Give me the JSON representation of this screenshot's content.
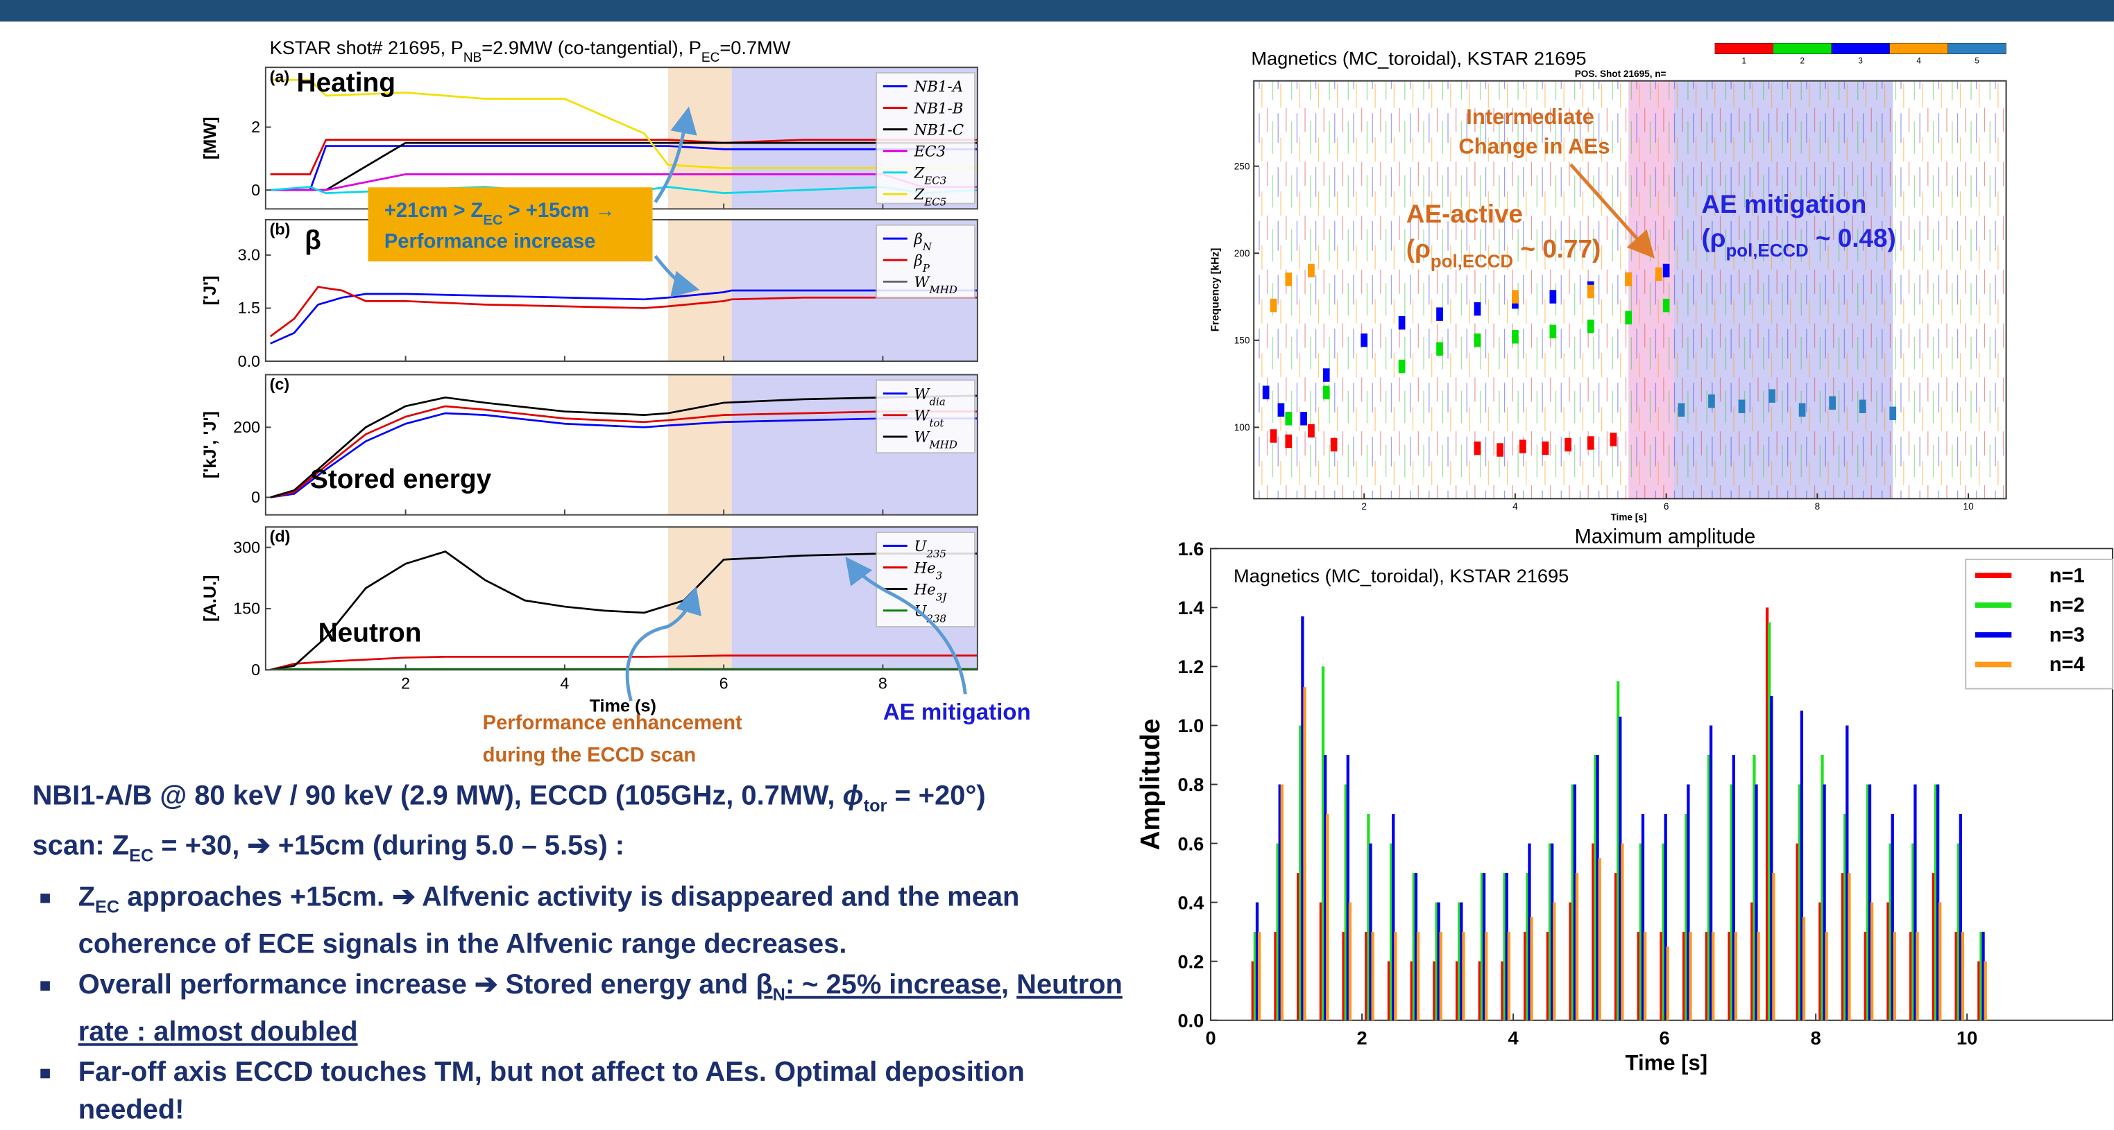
{
  "left_figure": {
    "title": [
      "KSTAR shot# 21695, P",
      "NB",
      "=2.9MW (co-tangential), P",
      "EC",
      "=0.7MW"
    ],
    "xlim": [
      0.24,
      9.19
    ],
    "xticks": [
      2,
      4,
      6,
      8
    ],
    "x_label": "Time (s)",
    "shaded": [
      {
        "from": 5.3,
        "to": 6.1,
        "color": "#f7dcc0"
      },
      {
        "from": 6.1,
        "to": 9.19,
        "color": "#c9c9f4"
      }
    ],
    "panels": [
      {
        "tag": "(a)",
        "label": "Heating",
        "y_label": "[MW]",
        "ylim": [
          -0.6,
          3.9
        ],
        "yticks": [
          0,
          2
        ],
        "x": [
          0.3,
          0.8,
          1.0,
          2.0,
          3.0,
          4.0,
          5.0,
          5.3,
          6.0,
          7.0,
          8.0,
          8.5,
          9.2
        ],
        "series": [
          {
            "name": "NB1-A",
            "color": "#0000ff",
            "values": [
              0,
              0,
              1.4,
              1.4,
              1.4,
              1.4,
              1.4,
              1.4,
              1.3,
              1.3,
              1.3,
              1.3,
              1.3
            ]
          },
          {
            "name": "NB1-B",
            "color": "#e00000",
            "values": [
              0.5,
              0.5,
              1.6,
              1.6,
              1.6,
              1.6,
              1.6,
              1.6,
              1.5,
              1.6,
              1.6,
              1.6,
              1.6
            ]
          },
          {
            "name": "NB1-C",
            "color": "#000000",
            "values": [
              0,
              0,
              0,
              1.5,
              1.5,
              1.5,
              1.5,
              1.5,
              1.5,
              1.5,
              1.5,
              1.5,
              1.5
            ]
          },
          {
            "name": "EC3",
            "color": "#e000e0",
            "values": [
              0,
              0,
              0,
              0.5,
              0.5,
              0.5,
              0.5,
              0.5,
              0.5,
              0.5,
              0.5,
              0.1,
              0.1
            ]
          },
          {
            "name": "Z",
            "sub": "EC3",
            "color": "#00d8e8",
            "values": [
              0,
              0.1,
              -0.1,
              0,
              0.1,
              -0.1,
              0,
              0.1,
              -0.1,
              0,
              0.1,
              -0.1,
              0
            ]
          },
          {
            "name": "Z",
            "sub": "EC5",
            "color": "#f2e000",
            "values": [
              3.5,
              3.5,
              3.0,
              3.1,
              2.9,
              2.9,
              1.8,
              0.8,
              0.7,
              0.7,
              0.7,
              0.7,
              0.7
            ]
          }
        ]
      },
      {
        "tag": "(b)",
        "label": "β",
        "y_label": "['J']",
        "ylim": [
          0,
          4.0
        ],
        "yticks": [
          {
            "value": 0,
            "label": "0.0"
          },
          1.5,
          {
            "value": 3,
            "label": "3.0"
          }
        ],
        "x": [
          0.3,
          0.6,
          0.9,
          1.2,
          1.5,
          2,
          3,
          4,
          5,
          5.3,
          6,
          6.1,
          7,
          8,
          9.2
        ],
        "series": [
          {
            "name": "β",
            "sub": "N",
            "color": "#0000ff",
            "values": [
              0.5,
              0.8,
              1.6,
              1.8,
              1.9,
              1.9,
              1.85,
              1.8,
              1.75,
              1.8,
              1.95,
              2.0,
              2.0,
              2.0,
              2.0
            ]
          },
          {
            "name": "β",
            "sub": "P",
            "color": "#e00000",
            "values": [
              0.7,
              1.2,
              2.1,
              2.0,
              1.7,
              1.7,
              1.6,
              1.55,
              1.5,
              1.55,
              1.7,
              1.75,
              1.8,
              1.8,
              1.8
            ]
          }
        ],
        "legend_only": [
          {
            "name": "W",
            "sub": "MHD",
            "color": "#666666"
          }
        ]
      },
      {
        "tag": "(c)",
        "label": "Stored energy",
        "y_label": "['kJ', 'J']",
        "ylim": [
          -50,
          350
        ],
        "yticks": [
          0,
          200
        ],
        "x": [
          0.3,
          0.6,
          1,
          1.5,
          2,
          2.5,
          3,
          4,
          5,
          5.3,
          6,
          7,
          8,
          9.2
        ],
        "series": [
          {
            "name": "W",
            "sub": "dia",
            "color": "#0000ff",
            "values": [
              0,
              10,
              80,
              160,
              210,
              240,
              235,
              210,
              200,
              205,
              215,
              220,
              225,
              225
            ]
          },
          {
            "name": "W",
            "sub": "tot",
            "color": "#e00000",
            "values": [
              0,
              15,
              90,
              180,
              230,
              260,
              250,
              225,
              215,
              220,
              235,
              240,
              245,
              245
            ]
          },
          {
            "name": "W",
            "sub": "MHD",
            "color": "#000000",
            "values": [
              0,
              20,
              100,
              200,
              260,
              285,
              270,
              245,
              235,
              240,
              270,
              280,
              285,
              290
            ]
          }
        ]
      },
      {
        "tag": "(d)",
        "label": "Neutron",
        "y_label": "[A.U.]",
        "ylim": [
          0,
          350
        ],
        "yticks": [
          0,
          150,
          300
        ],
        "x": [
          0.3,
          0.6,
          1,
          1.5,
          2,
          2.5,
          3,
          3.5,
          4,
          4.5,
          5,
          5.5,
          6,
          6.5,
          7,
          8,
          9.2
        ],
        "series": [
          {
            "name": "U",
            "sub": "235",
            "color": "#0000ff",
            "values": [
              0,
              1,
              1,
              1,
              1,
              1,
              1,
              1,
              1,
              1,
              1,
              1,
              1,
              1,
              1,
              1,
              1
            ]
          },
          {
            "name": "He",
            "sub": "3",
            "color": "#e00000",
            "values": [
              0,
              15,
              20,
              25,
              30,
              32,
              32,
              32,
              32,
              32,
              32,
              33,
              35,
              35,
              35,
              35,
              35
            ]
          },
          {
            "name": "He",
            "sub": "3J",
            "color": "#000000",
            "values": [
              0,
              10,
              80,
              200,
              260,
              290,
              220,
              170,
              155,
              145,
              140,
              170,
              270,
              275,
              280,
              285,
              285
            ]
          },
          {
            "name": "U",
            "sub": "238",
            "color": "#008000",
            "values": [
              0,
              2,
              2,
              2,
              2,
              2,
              2,
              2,
              2,
              2,
              2,
              2,
              2,
              2,
              2,
              2,
              2
            ]
          }
        ]
      }
    ],
    "callout": [
      "+21cm > Z",
      "EC",
      " > +15cm →",
      "Performance increase"
    ],
    "annotation_left": [
      "Performance enhancement",
      "during the ECCD scan"
    ],
    "annotation_right": "AE mitigation"
  },
  "spectrogram": {
    "title": "Magnetics (MC_toroidal), KSTAR 21695",
    "inner_title": "POS. Shot 21695, n=",
    "colorbar": {
      "labels": [
        1,
        2,
        3,
        4,
        5
      ],
      "colors": [
        "#ff0000",
        "#00e000",
        "#0000ff",
        "#ff9900",
        "#2a7fc0"
      ]
    },
    "x_label": "Time [s]",
    "y_label": "Frequency [kHz]",
    "xlim": [
      0.54,
      10.5
    ],
    "xticks": [
      2,
      4,
      6,
      8,
      10
    ],
    "ylim": [
      59,
      299
    ],
    "yticks": [
      100,
      150,
      200,
      250
    ],
    "shaded": [
      {
        "from": 5.5,
        "to": 6.1,
        "color": "#f6c8e8"
      },
      {
        "from": 6.1,
        "to": 9.0,
        "color": "#cdcdf6"
      }
    ],
    "tracks": [
      {
        "color": "#ff0000",
        "x": [
          0.8,
          1.0,
          1.3,
          1.6,
          3.5,
          3.8,
          4.1,
          4.4,
          4.7,
          5.0,
          5.3
        ],
        "values": [
          95,
          92,
          98,
          90,
          88,
          87,
          89,
          88,
          90,
          91,
          93
        ]
      },
      {
        "color": "#00e000",
        "x": [
          1.0,
          1.5,
          2.5,
          3.0,
          3.5,
          4.0,
          4.5,
          5.0,
          5.5,
          6.0
        ],
        "values": [
          105,
          120,
          135,
          145,
          150,
          152,
          155,
          158,
          163,
          170
        ]
      },
      {
        "color": "#0000ff",
        "x": [
          0.7,
          0.9,
          1.2,
          1.5,
          2.0,
          2.5,
          3.0,
          3.5,
          4.0,
          4.5,
          5.0,
          5.5,
          6.0
        ],
        "values": [
          120,
          110,
          105,
          130,
          150,
          160,
          165,
          168,
          172,
          175,
          180,
          185,
          190
        ]
      },
      {
        "color": "#ff9900",
        "x": [
          0.8,
          1.0,
          1.3,
          4.0,
          5.0,
          5.5,
          5.9
        ],
        "values": [
          170,
          185,
          190,
          175,
          178,
          185,
          188
        ]
      },
      {
        "color": "#2a7fc0",
        "x": [
          6.2,
          6.6,
          7.0,
          7.4,
          7.8,
          8.2,
          8.6,
          9.0
        ],
        "values": [
          110,
          115,
          112,
          118,
          110,
          114,
          112,
          108
        ]
      }
    ],
    "annotations": {
      "intermediate": [
        "Intermediate",
        "Change in AEs"
      ],
      "active": [
        "AE-active",
        "(ρ",
        "pol,ECCD",
        " ~ 0.77)"
      ],
      "mitigation": [
        "AE mitigation",
        "(ρ",
        "pol,ECCD",
        " ~ 0.48)"
      ]
    }
  },
  "amplitude_chart": {
    "type": "stem",
    "title": "Maximum amplitude",
    "inner_title": "Magnetics (MC_toroidal), KSTAR 21695",
    "x_label": "Time [s]",
    "y_label": "Amplitude",
    "xlim": [
      0,
      12
    ],
    "xticks": [
      0,
      2,
      4,
      6,
      8,
      10
    ],
    "ylim": [
      0,
      1.6
    ],
    "yticks": [
      {
        "value": 0,
        "label": "0.0"
      },
      0.2,
      0.4,
      0.6,
      0.8,
      {
        "value": 1,
        "label": "1.0"
      },
      1.2,
      1.4,
      1.6
    ],
    "legend": "upper right",
    "x": [
      0.6,
      0.9,
      1.2,
      1.5,
      1.8,
      2.1,
      2.4,
      2.7,
      3.0,
      3.3,
      3.6,
      3.9,
      4.2,
      4.5,
      4.8,
      5.1,
      5.4,
      5.7,
      6.0,
      6.3,
      6.6,
      6.9,
      7.2,
      7.4,
      7.8,
      8.1,
      8.4,
      8.7,
      9.0,
      9.3,
      9.6,
      9.9,
      10.2
    ],
    "series": [
      {
        "name": "n=1",
        "color": "#ff0000",
        "values": [
          0.2,
          0.3,
          0.5,
          0.4,
          0.3,
          0.3,
          0.2,
          0.2,
          0.2,
          0.2,
          0.2,
          0.2,
          0.3,
          0.3,
          0.4,
          0.6,
          0.5,
          0.3,
          0.3,
          0.3,
          0.3,
          0.3,
          0.4,
          1.4,
          0.6,
          0.4,
          0.5,
          0.3,
          0.4,
          0.3,
          0.5,
          0.3,
          0.2
        ]
      },
      {
        "name": "n=2",
        "color": "#22e022",
        "values": [
          0.3,
          0.6,
          1.0,
          1.2,
          0.8,
          0.7,
          0.6,
          0.5,
          0.4,
          0.4,
          0.5,
          0.5,
          0.5,
          0.6,
          0.8,
          0.9,
          1.15,
          0.6,
          0.6,
          0.7,
          0.9,
          0.8,
          0.9,
          1.35,
          0.8,
          0.9,
          0.7,
          0.8,
          0.6,
          0.6,
          0.8,
          0.6,
          0.3
        ]
      },
      {
        "name": "n=3",
        "color": "#0000ee",
        "values": [
          0.4,
          0.8,
          1.37,
          0.9,
          0.9,
          0.6,
          0.7,
          0.5,
          0.4,
          0.4,
          0.5,
          0.5,
          0.6,
          0.6,
          0.8,
          0.9,
          1.03,
          0.7,
          0.7,
          0.8,
          1.0,
          0.9,
          0.8,
          1.1,
          1.05,
          0.8,
          1.0,
          0.8,
          0.7,
          0.8,
          0.8,
          0.7,
          0.3
        ]
      },
      {
        "name": "n=4",
        "color": "#ff9a1a",
        "values": [
          0.3,
          0.8,
          1.13,
          0.7,
          0.4,
          0.3,
          0.3,
          0.3,
          0.3,
          0.3,
          0.3,
          0.3,
          0.35,
          0.4,
          0.5,
          0.55,
          0.6,
          0.3,
          0.25,
          0.3,
          0.3,
          0.3,
          0.3,
          0.5,
          0.35,
          0.3,
          0.5,
          0.4,
          0.3,
          0.3,
          0.4,
          0.3,
          0.2
        ]
      }
    ]
  },
  "notes": {
    "intro": [
      "NBI1-A/B @ 80 keV / 90 keV (2.9 MW), ECCD (105GHz, 0.7MW, ",
      "ϕ",
      "tor",
      " = +20°)",
      "scan:  Z",
      "EC",
      " = +30, ",
      "➔ +15cm (during 5.0 – 5.5s) :"
    ],
    "bullets": [
      [
        "Z",
        "EC",
        " approaches +15cm. ➔ Alfvenic activity is disappeared and the mean coherence of ECE signals in the Alfvenic range decreases."
      ],
      [
        "Overall performance increase ➔ Stored energy and ",
        "β",
        "N",
        ":  ~ 25% increase",
        ", ",
        "Neutron rate :  almost doubled"
      ],
      [
        "Far-off axis ECCD touches TM, but not affect to AEs. Optimal deposition needed!"
      ]
    ]
  }
}
